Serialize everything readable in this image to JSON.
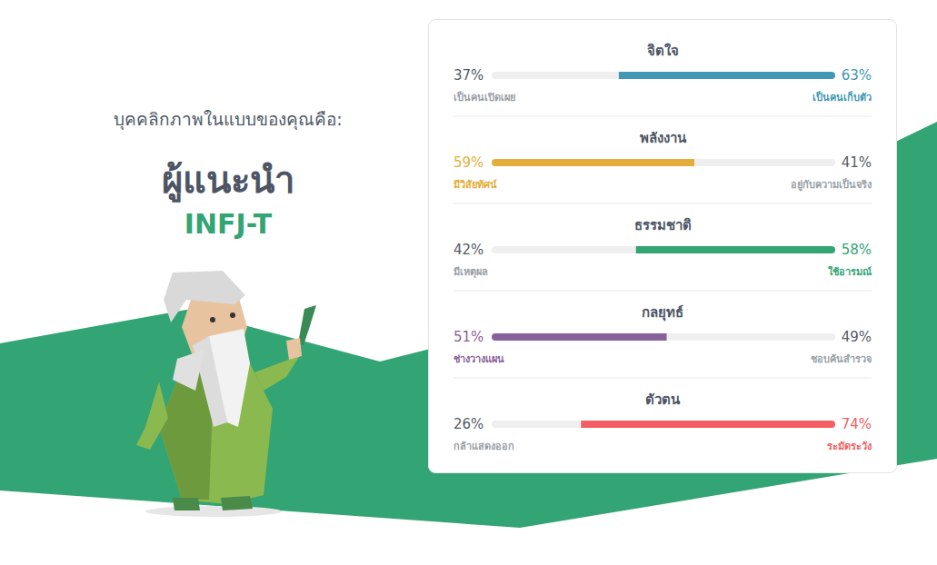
{
  "header": {
    "intro": "บุคคลิกภาพในแบบของคุณคือ:",
    "name": "ผู้แนะนำ",
    "code": "INFJ-T"
  },
  "chart_data": {
    "type": "bar",
    "orientation": "horizontal",
    "stacked": true,
    "xlim": [
      0,
      100
    ],
    "tick_labels": false,
    "grid": false,
    "data_labels": true,
    "traits": [
      {
        "title": "จิตใจ",
        "color": "#4298b4",
        "left": {
          "label": "เป็นคนเปิดเผย",
          "value": 37,
          "value_label": "37%"
        },
        "right": {
          "label": "เป็นคนเก็บตัว",
          "value": 63,
          "value_label": "63%"
        }
      },
      {
        "title": "พลังงาน",
        "color": "#e4ae3a",
        "left": {
          "label": "มีวิสัยทัศน์",
          "value": 59,
          "value_label": "59%"
        },
        "right": {
          "label": "อยู่กับความเป็นจริง",
          "value": 41,
          "value_label": "41%"
        }
      },
      {
        "title": "ธรรมชาติ",
        "color": "#33a474",
        "left": {
          "label": "มีเหตุผล",
          "value": 42,
          "value_label": "42%"
        },
        "right": {
          "label": "ใช้อารมณ์",
          "value": 58,
          "value_label": "58%"
        }
      },
      {
        "title": "กลยุทธ์",
        "color": "#88619a",
        "left": {
          "label": "ช่างวางแผน",
          "value": 51,
          "value_label": "51%"
        },
        "right": {
          "label": "ชอบค้นสำรวจ",
          "value": 49,
          "value_label": "49%"
        }
      },
      {
        "title": "ตัวตน",
        "color": "#f25e62",
        "left": {
          "label": "กล้าแสดงออก",
          "value": 26,
          "value_label": "26%"
        },
        "right": {
          "label": "ระมัดระวัง",
          "value": 74,
          "value_label": "74%"
        }
      }
    ]
  }
}
